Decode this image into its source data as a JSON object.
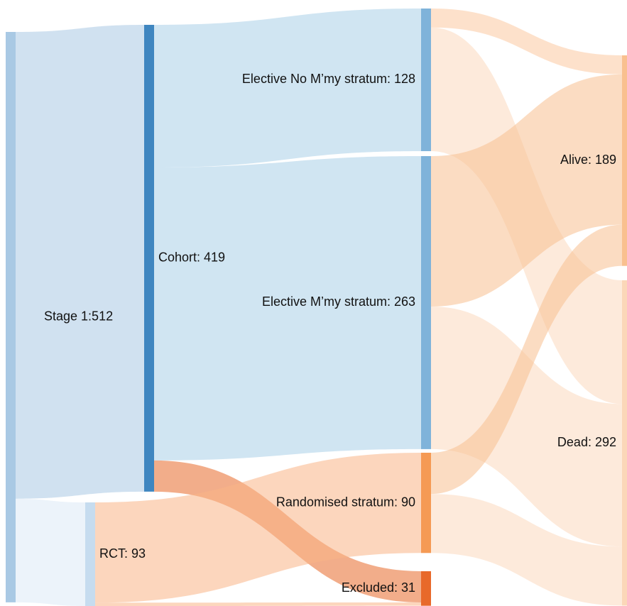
{
  "chart_data": {
    "type": "sankey",
    "nodes": [
      {
        "name": "Stage 1:512",
        "color": "#a9c9e4"
      },
      {
        "name": "Cohort: 419",
        "color": "#3f86c0"
      },
      {
        "name": "RCT: 93",
        "color": "#c6dcef"
      },
      {
        "name": "Elective No M’my stratum: 128",
        "color": "#7fb3da"
      },
      {
        "name": "Elective M’my stratum: 263",
        "color": "#7fb3da"
      },
      {
        "name": "Randomised stratum: 90",
        "color": "#f59a54"
      },
      {
        "name": "Excluded: 31",
        "color": "#e8692a"
      },
      {
        "name": "Alive: 189",
        "color": "#f9c08f"
      },
      {
        "name": "Dead: 292",
        "color": "#fbd7b8"
      }
    ],
    "links": [
      {
        "source": 0,
        "target": 1,
        "value": 419,
        "color": "#a9c9e4"
      },
      {
        "source": 0,
        "target": 2,
        "value": 93,
        "color": "#dce9f5"
      },
      {
        "source": 1,
        "target": 3,
        "value": 128,
        "color": "#a9cfe8"
      },
      {
        "source": 1,
        "target": 4,
        "value": 263,
        "color": "#a9cfe8"
      },
      {
        "source": 1,
        "target": 6,
        "value": 28,
        "color": "#e8692a"
      },
      {
        "source": 2,
        "target": 5,
        "value": 90,
        "color": "#f9b486"
      },
      {
        "source": 2,
        "target": 6,
        "value": 3,
        "color": "#f9b486"
      },
      {
        "source": 3,
        "target": 7,
        "value": 17,
        "color": "#fbc9a0"
      },
      {
        "source": 3,
        "target": 8,
        "value": 111,
        "color": "#fcd9bd"
      },
      {
        "source": 4,
        "target": 7,
        "value": 135,
        "color": "#f8c08f"
      },
      {
        "source": 4,
        "target": 8,
        "value": 128,
        "color": "#fcd9bd"
      },
      {
        "source": 5,
        "target": 7,
        "value": 37,
        "color": "#f8c08f"
      },
      {
        "source": 5,
        "target": 8,
        "value": 53,
        "color": "#fcd9bd"
      }
    ]
  }
}
